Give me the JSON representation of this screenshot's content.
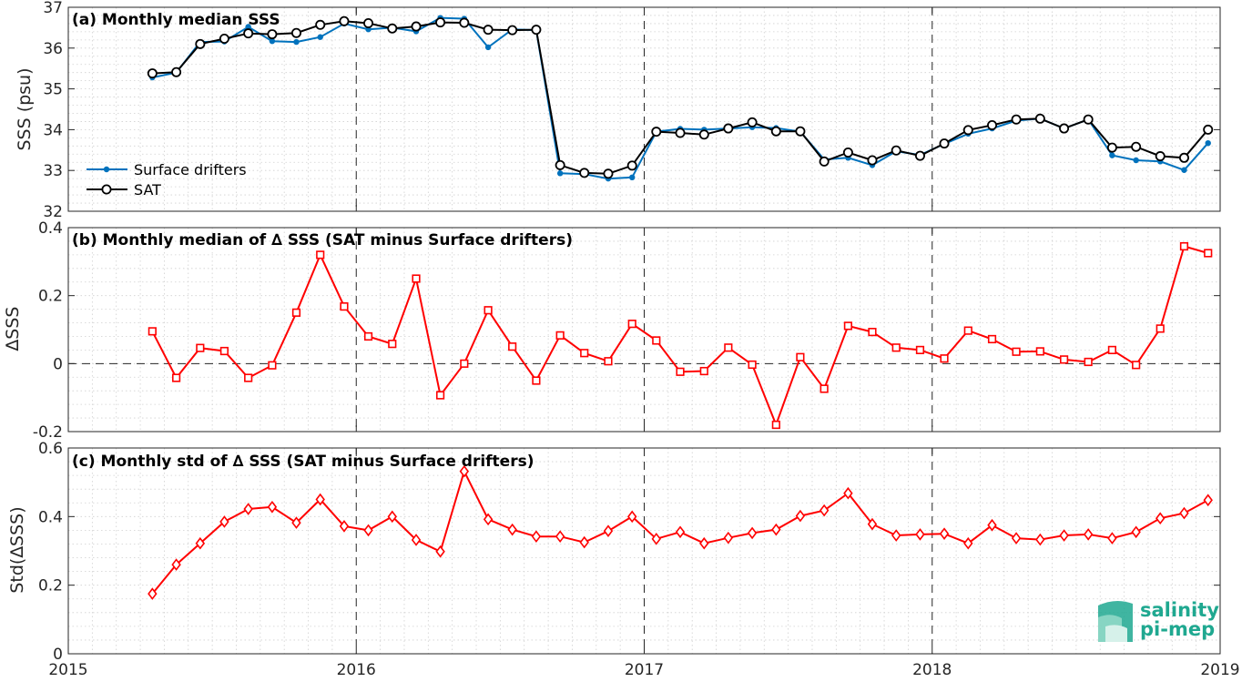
{
  "chart_data": [
    {
      "type": "line",
      "title": "(a) Monthly median SSS",
      "ylabel": "SSS (psu)",
      "xlim": [
        2015,
        2019
      ],
      "ylim": [
        32,
        37
      ],
      "yticks": [
        "32",
        "33",
        "34",
        "35",
        "36",
        "37"
      ],
      "grid": true,
      "legend": "bottom-left",
      "series": [
        {
          "name": "Surface drifters",
          "color": "#0072bd",
          "marker": "filled-dot",
          "x": [
            2015.292,
            2015.375,
            2015.458,
            2015.542,
            2015.625,
            2015.708,
            2015.792,
            2015.875,
            2015.958,
            2016.042,
            2016.125,
            2016.208,
            2016.292,
            2016.375,
            2016.458,
            2016.542,
            2016.625,
            2016.708,
            2016.792,
            2016.875,
            2016.958,
            2017.042,
            2017.125,
            2017.208,
            2017.292,
            2017.375,
            2017.458,
            2017.542,
            2017.625,
            2017.708,
            2017.792,
            2017.875,
            2017.958,
            2018.042,
            2018.125,
            2018.208,
            2018.292,
            2018.375,
            2018.458,
            2018.542,
            2018.625,
            2018.708,
            2018.792,
            2018.875,
            2018.958
          ],
          "values": [
            35.28,
            35.4,
            36.15,
            36.16,
            36.52,
            36.17,
            36.15,
            36.27,
            36.6,
            36.46,
            36.5,
            36.41,
            36.74,
            36.72,
            36.02,
            36.46,
            36.44,
            32.93,
            32.91,
            32.8,
            32.83,
            33.95,
            34.02,
            34.0,
            34.03,
            34.06,
            34.04,
            33.95,
            33.27,
            33.31,
            33.13,
            33.47,
            33.38,
            33.65,
            33.9,
            34.03,
            34.22,
            34.27,
            34.03,
            34.25,
            33.37,
            33.25,
            33.22,
            33.01,
            33.67
          ]
        },
        {
          "name": "SAT",
          "color": "#000000",
          "marker": "open-circle",
          "x": [
            2015.292,
            2015.375,
            2015.458,
            2015.542,
            2015.625,
            2015.708,
            2015.792,
            2015.875,
            2015.958,
            2016.042,
            2016.125,
            2016.208,
            2016.292,
            2016.375,
            2016.458,
            2016.542,
            2016.625,
            2016.708,
            2016.792,
            2016.875,
            2016.958,
            2017.042,
            2017.125,
            2017.208,
            2017.292,
            2017.375,
            2017.458,
            2017.542,
            2017.625,
            2017.708,
            2017.792,
            2017.875,
            2017.958,
            2018.042,
            2018.125,
            2018.208,
            2018.292,
            2018.375,
            2018.458,
            2018.542,
            2018.625,
            2018.708,
            2018.792,
            2018.875,
            2018.958
          ],
          "values": [
            35.38,
            35.41,
            36.1,
            36.23,
            36.36,
            36.34,
            36.37,
            36.57,
            36.66,
            36.61,
            36.48,
            36.53,
            36.63,
            36.62,
            36.45,
            36.44,
            36.45,
            33.13,
            32.94,
            32.92,
            33.12,
            33.95,
            33.92,
            33.88,
            34.03,
            34.18,
            33.96,
            33.96,
            33.22,
            33.44,
            33.25,
            33.49,
            33.36,
            33.66,
            33.99,
            34.11,
            34.25,
            34.27,
            34.03,
            34.25,
            33.56,
            33.58,
            33.35,
            33.31,
            34.0
          ]
        }
      ]
    },
    {
      "type": "line",
      "title": "(b) Monthly median of ∆ SSS (SAT minus Surface drifters)",
      "ylabel": "∆SSS",
      "xlim": [
        2015,
        2019
      ],
      "ylim": [
        -0.2,
        0.4
      ],
      "yticks": [
        "-0.2",
        "0",
        "0.2",
        "0.4"
      ],
      "grid": true,
      "zero_line": "dashed",
      "series": [
        {
          "color": "#ff0000",
          "marker": "open-square",
          "x": [
            2015.292,
            2015.375,
            2015.458,
            2015.542,
            2015.625,
            2015.708,
            2015.792,
            2015.875,
            2015.958,
            2016.042,
            2016.125,
            2016.208,
            2016.292,
            2016.375,
            2016.458,
            2016.542,
            2016.625,
            2016.708,
            2016.792,
            2016.875,
            2016.958,
            2017.042,
            2017.125,
            2017.208,
            2017.292,
            2017.375,
            2017.458,
            2017.542,
            2017.625,
            2017.708,
            2017.792,
            2017.875,
            2017.958,
            2018.042,
            2018.125,
            2018.208,
            2018.292,
            2018.375,
            2018.458,
            2018.542,
            2018.625,
            2018.708,
            2018.792,
            2018.875,
            2018.958
          ],
          "values": [
            0.095,
            -0.042,
            0.046,
            0.037,
            -0.042,
            -0.005,
            0.15,
            0.32,
            0.168,
            0.08,
            0.058,
            0.25,
            -0.093,
            0.0,
            0.157,
            0.05,
            -0.05,
            0.083,
            0.031,
            0.007,
            0.117,
            0.068,
            -0.024,
            -0.022,
            0.047,
            -0.003,
            -0.18,
            0.019,
            -0.074,
            0.111,
            0.093,
            0.047,
            0.04,
            0.015,
            0.097,
            0.072,
            0.035,
            0.036,
            0.012,
            0.005,
            0.04,
            -0.004,
            0.103,
            0.345,
            0.325
          ]
        }
      ]
    },
    {
      "type": "line",
      "title": "(c) Monthly std of ∆ SSS (SAT minus Surface drifters)",
      "ylabel": "Std(∆SSS)",
      "xlim": [
        2015,
        2019
      ],
      "ylim": [
        0,
        0.6
      ],
      "yticks": [
        "0",
        "0.2",
        "0.4",
        "0.6"
      ],
      "xticks": [
        "2015",
        "2016",
        "2017",
        "2018",
        "2019"
      ],
      "grid": true,
      "series": [
        {
          "color": "#ff0000",
          "marker": "open-diamond",
          "x": [
            2015.292,
            2015.375,
            2015.458,
            2015.542,
            2015.625,
            2015.708,
            2015.792,
            2015.875,
            2015.958,
            2016.042,
            2016.125,
            2016.208,
            2016.292,
            2016.375,
            2016.458,
            2016.542,
            2016.625,
            2016.708,
            2016.792,
            2016.875,
            2016.958,
            2017.042,
            2017.125,
            2017.208,
            2017.292,
            2017.375,
            2017.458,
            2017.542,
            2017.625,
            2017.708,
            2017.792,
            2017.875,
            2017.958,
            2018.042,
            2018.125,
            2018.208,
            2018.292,
            2018.375,
            2018.458,
            2018.542,
            2018.625,
            2018.708,
            2018.792,
            2018.875,
            2018.958
          ],
          "values": [
            0.175,
            0.26,
            0.322,
            0.385,
            0.422,
            0.428,
            0.382,
            0.45,
            0.372,
            0.36,
            0.4,
            0.332,
            0.298,
            0.532,
            0.392,
            0.362,
            0.342,
            0.342,
            0.325,
            0.358,
            0.4,
            0.335,
            0.355,
            0.322,
            0.338,
            0.352,
            0.362,
            0.402,
            0.418,
            0.468,
            0.378,
            0.345,
            0.348,
            0.35,
            0.322,
            0.375,
            0.337,
            0.333,
            0.345,
            0.348,
            0.337,
            0.355,
            0.395,
            0.41,
            0.448
          ]
        }
      ]
    }
  ],
  "logo": {
    "line1": "salinity",
    "line2": "pi-mep"
  }
}
